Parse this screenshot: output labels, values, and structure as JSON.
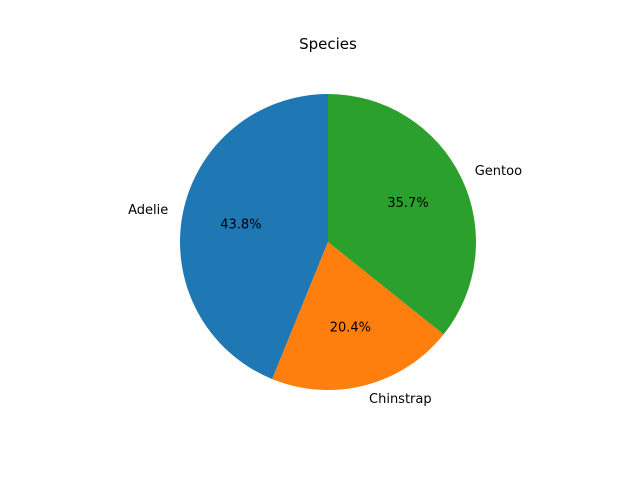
{
  "chart_data": {
    "type": "pie",
    "title": "Species",
    "start_angle_deg": 90,
    "direction": "counterclockwise",
    "slices": [
      {
        "label": "Adelie",
        "value": 43.8,
        "pct_text": "43.8%",
        "color": "#1f77b4"
      },
      {
        "label": "Chinstrap",
        "value": 20.4,
        "pct_text": "20.4%",
        "color": "#ff7f0e"
      },
      {
        "label": "Gentoo",
        "value": 35.7,
        "pct_text": "35.7%",
        "color": "#2ca02c"
      }
    ]
  }
}
